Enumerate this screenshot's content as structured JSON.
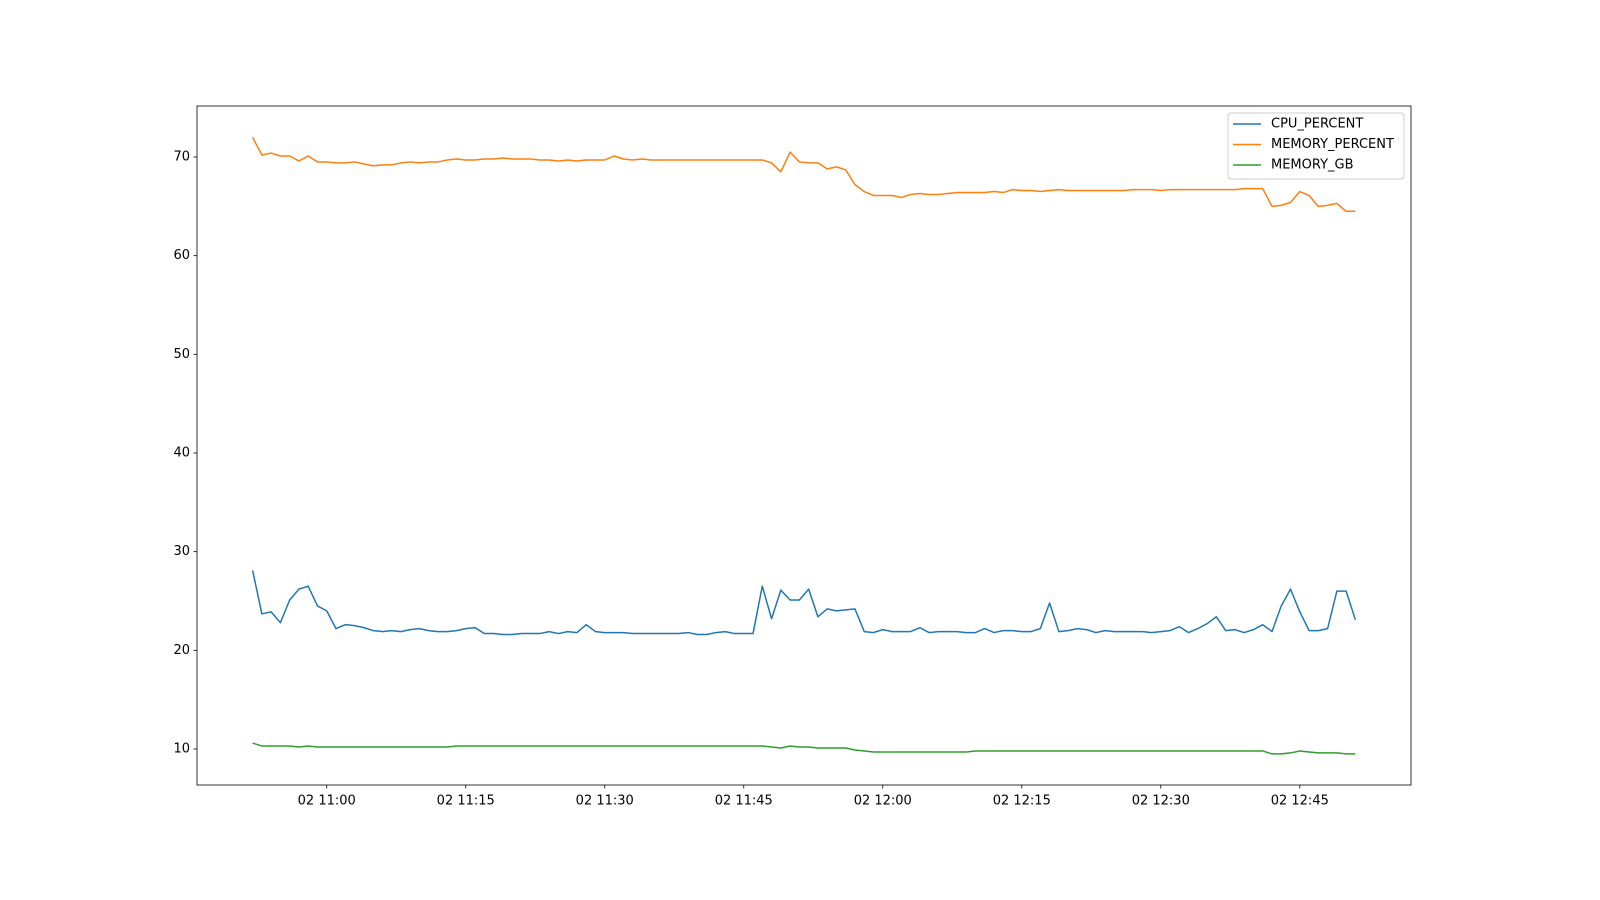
{
  "chart_data": {
    "type": "line",
    "x": [
      "02 10:52",
      "02 10:53",
      "02 10:54",
      "02 10:55",
      "02 10:56",
      "02 10:57",
      "02 10:58",
      "02 10:59",
      "02 11:00",
      "02 11:01",
      "02 11:02",
      "02 11:03",
      "02 11:04",
      "02 11:05",
      "02 11:06",
      "02 11:07",
      "02 11:08",
      "02 11:09",
      "02 11:10",
      "02 11:11",
      "02 11:12",
      "02 11:13",
      "02 11:14",
      "02 11:15",
      "02 11:16",
      "02 11:17",
      "02 11:18",
      "02 11:19",
      "02 11:20",
      "02 11:21",
      "02 11:22",
      "02 11:23",
      "02 11:24",
      "02 11:25",
      "02 11:26",
      "02 11:27",
      "02 11:28",
      "02 11:29",
      "02 11:30",
      "02 11:31",
      "02 11:32",
      "02 11:33",
      "02 11:34",
      "02 11:35",
      "02 11:36",
      "02 11:37",
      "02 11:38",
      "02 11:39",
      "02 11:40",
      "02 11:41",
      "02 11:42",
      "02 11:43",
      "02 11:44",
      "02 11:45",
      "02 11:46",
      "02 11:47",
      "02 11:48",
      "02 11:49",
      "02 11:50",
      "02 11:51",
      "02 11:52",
      "02 11:53",
      "02 11:54",
      "02 11:55",
      "02 11:56",
      "02 11:57",
      "02 11:58",
      "02 11:59",
      "02 12:00",
      "02 12:01",
      "02 12:02",
      "02 12:03",
      "02 12:04",
      "02 12:05",
      "02 12:06",
      "02 12:07",
      "02 12:08",
      "02 12:09",
      "02 12:10",
      "02 12:11",
      "02 12:12",
      "02 12:13",
      "02 12:14",
      "02 12:15",
      "02 12:16",
      "02 12:17",
      "02 12:18",
      "02 12:19",
      "02 12:20",
      "02 12:21",
      "02 12:22",
      "02 12:23",
      "02 12:24",
      "02 12:25",
      "02 12:26",
      "02 12:27",
      "02 12:28",
      "02 12:29",
      "02 12:30",
      "02 12:31",
      "02 12:32",
      "02 12:33",
      "02 12:34",
      "02 12:35",
      "02 12:36",
      "02 12:37",
      "02 12:38",
      "02 12:39",
      "02 12:40",
      "02 12:41",
      "02 12:42",
      "02 12:43",
      "02 12:44",
      "02 12:45",
      "02 12:46",
      "02 12:47",
      "02 12:48",
      "02 12:49",
      "02 12:50",
      "02 12:51"
    ],
    "series": [
      {
        "name": "CPU_PERCENT",
        "color": "#1f77b4",
        "values": [
          28.1,
          23.7,
          23.9,
          22.8,
          25.1,
          26.2,
          26.5,
          24.5,
          24.0,
          22.2,
          22.6,
          22.5,
          22.3,
          22.0,
          21.9,
          22.0,
          21.9,
          22.1,
          22.2,
          22.0,
          21.9,
          21.9,
          22.0,
          22.2,
          22.3,
          21.7,
          21.7,
          21.6,
          21.6,
          21.7,
          21.7,
          21.7,
          21.9,
          21.7,
          21.9,
          21.8,
          22.6,
          21.9,
          21.8,
          21.8,
          21.8,
          21.7,
          21.7,
          21.7,
          21.7,
          21.7,
          21.7,
          21.8,
          21.6,
          21.6,
          21.8,
          21.9,
          21.7,
          21.7,
          21.7,
          26.5,
          23.2,
          26.1,
          25.1,
          25.1,
          26.2,
          23.4,
          24.2,
          24.0,
          24.1,
          24.2,
          21.9,
          21.8,
          22.1,
          21.9,
          21.9,
          21.9,
          22.3,
          21.8,
          21.9,
          21.9,
          21.9,
          21.8,
          21.8,
          22.2,
          21.8,
          22.0,
          22.0,
          21.9,
          21.9,
          22.2,
          24.8,
          21.9,
          22.0,
          22.2,
          22.1,
          21.8,
          22.0,
          21.9,
          21.9,
          21.9,
          21.9,
          21.8,
          21.9,
          22.0,
          22.4,
          21.8,
          22.2,
          22.7,
          23.4,
          22.0,
          22.1,
          21.8,
          22.1,
          22.6,
          21.9,
          24.5,
          26.2,
          23.9,
          22.0,
          22.0,
          22.2,
          26.0,
          26.0,
          23.1
        ]
      },
      {
        "name": "MEMORY_PERCENT",
        "color": "#ff7f0e",
        "values": [
          72.0,
          70.2,
          70.4,
          70.1,
          70.1,
          69.6,
          70.1,
          69.5,
          69.5,
          69.4,
          69.4,
          69.5,
          69.3,
          69.1,
          69.2,
          69.2,
          69.4,
          69.5,
          69.4,
          69.5,
          69.5,
          69.7,
          69.8,
          69.7,
          69.7,
          69.8,
          69.8,
          69.9,
          69.8,
          69.8,
          69.8,
          69.7,
          69.7,
          69.6,
          69.7,
          69.6,
          69.7,
          69.7,
          69.7,
          70.1,
          69.8,
          69.7,
          69.8,
          69.7,
          69.7,
          69.7,
          69.7,
          69.7,
          69.7,
          69.7,
          69.7,
          69.7,
          69.7,
          69.7,
          69.7,
          69.7,
          69.4,
          68.5,
          70.5,
          69.5,
          69.4,
          69.4,
          68.8,
          69.0,
          68.7,
          67.2,
          66.5,
          66.1,
          66.1,
          66.1,
          65.9,
          66.2,
          66.3,
          66.2,
          66.2,
          66.3,
          66.4,
          66.4,
          66.4,
          66.4,
          66.5,
          66.4,
          66.7,
          66.6,
          66.6,
          66.5,
          66.6,
          66.7,
          66.6,
          66.6,
          66.6,
          66.6,
          66.6,
          66.6,
          66.6,
          66.7,
          66.7,
          66.7,
          66.6,
          66.7,
          66.7,
          66.7,
          66.7,
          66.7,
          66.7,
          66.7,
          66.7,
          66.8,
          66.8,
          66.8,
          65.0,
          65.1,
          65.4,
          66.5,
          66.1,
          65.0,
          65.1,
          65.3,
          64.5,
          64.5
        ]
      },
      {
        "name": "MEMORY_GB",
        "color": "#2ca02c",
        "values": [
          10.6,
          10.3,
          10.3,
          10.3,
          10.3,
          10.2,
          10.3,
          10.2,
          10.2,
          10.2,
          10.2,
          10.2,
          10.2,
          10.2,
          10.2,
          10.2,
          10.2,
          10.2,
          10.2,
          10.2,
          10.2,
          10.2,
          10.3,
          10.3,
          10.3,
          10.3,
          10.3,
          10.3,
          10.3,
          10.3,
          10.3,
          10.3,
          10.3,
          10.3,
          10.3,
          10.3,
          10.3,
          10.3,
          10.3,
          10.3,
          10.3,
          10.3,
          10.3,
          10.3,
          10.3,
          10.3,
          10.3,
          10.3,
          10.3,
          10.3,
          10.3,
          10.3,
          10.3,
          10.3,
          10.3,
          10.3,
          10.2,
          10.1,
          10.3,
          10.2,
          10.2,
          10.1,
          10.1,
          10.1,
          10.1,
          9.9,
          9.8,
          9.7,
          9.7,
          9.7,
          9.7,
          9.7,
          9.7,
          9.7,
          9.7,
          9.7,
          9.7,
          9.7,
          9.8,
          9.8,
          9.8,
          9.8,
          9.8,
          9.8,
          9.8,
          9.8,
          9.8,
          9.8,
          9.8,
          9.8,
          9.8,
          9.8,
          9.8,
          9.8,
          9.8,
          9.8,
          9.8,
          9.8,
          9.8,
          9.8,
          9.8,
          9.8,
          9.8,
          9.8,
          9.8,
          9.8,
          9.8,
          9.8,
          9.8,
          9.8,
          9.5,
          9.5,
          9.6,
          9.8,
          9.7,
          9.6,
          9.6,
          9.6,
          9.5,
          9.5
        ]
      }
    ],
    "xlim": [
      "02 10:46",
      "02 12:57"
    ],
    "xticks": [
      "02 11:00",
      "02 11:15",
      "02 11:30",
      "02 11:45",
      "02 12:00",
      "02 12:15",
      "02 12:30",
      "02 12:45"
    ],
    "ylim": [
      6.35,
      75.17
    ],
    "yticks": [
      10,
      20,
      30,
      40,
      50,
      60,
      70
    ],
    "legend": "upper right"
  }
}
